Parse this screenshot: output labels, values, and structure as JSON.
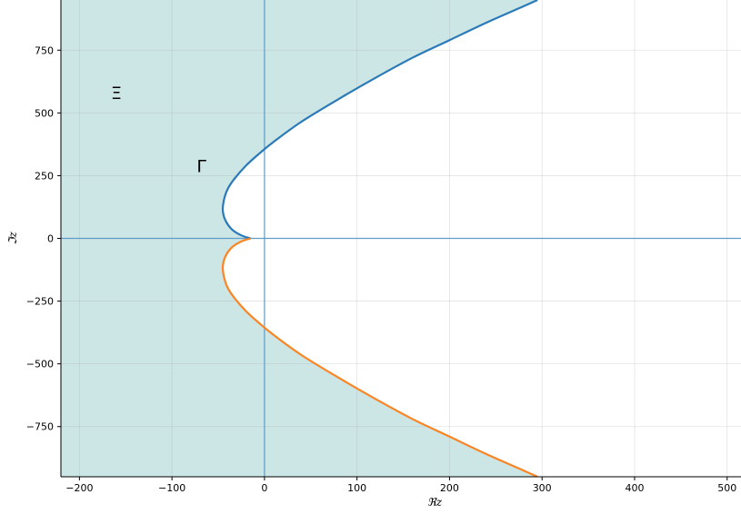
{
  "chart_data": {
    "type": "line",
    "title": "",
    "xlabel": "ℜz",
    "ylabel": "ℑz",
    "xlim": [
      -220,
      515
    ],
    "ylim": [
      -950,
      950
    ],
    "x_ticks": [
      -200,
      -100,
      0,
      100,
      200,
      300,
      400,
      500
    ],
    "y_ticks": [
      -750,
      -500,
      -250,
      0,
      250,
      500,
      750
    ],
    "x_tick_labels": [
      "−200",
      "−100",
      "0",
      "100",
      "200",
      "300",
      "400",
      "500"
    ],
    "y_tick_labels": [
      "−750",
      "−500",
      "−250",
      "0",
      "250",
      "500",
      "750"
    ],
    "grid": true,
    "legend": "none",
    "shaded_region": {
      "description_color": "#cce5e5",
      "side": "left-of-curve"
    },
    "reference_lines": [
      {
        "orientation": "vertical",
        "x": 0,
        "color": "#5f9dc6"
      },
      {
        "orientation": "horizontal",
        "y": 0,
        "color": "#5f9dc6"
      }
    ],
    "series": [
      {
        "color": "#2a7ab9",
        "x": [
          -15,
          -25,
          -35,
          -42,
          -45,
          -44,
          -40,
          -33,
          -20,
          -5,
          10,
          40,
          80,
          120,
          160,
          200,
          240,
          280,
          295
        ],
        "y": [
          0,
          12,
          35,
          70,
          110,
          150,
          195,
          235,
          290,
          340,
          385,
          465,
          555,
          640,
          720,
          790,
          860,
          925,
          950
        ]
      },
      {
        "color": "#fd8422",
        "x": [
          -15,
          -25,
          -35,
          -42,
          -45,
          -44,
          -40,
          -33,
          -20,
          -5,
          10,
          40,
          80,
          120,
          160,
          200,
          240,
          280,
          295
        ],
        "y": [
          0,
          -12,
          -35,
          -70,
          -110,
          -150,
          -195,
          -235,
          -290,
          -340,
          -385,
          -465,
          -555,
          -640,
          -720,
          -790,
          -860,
          -925,
          -950
        ]
      }
    ],
    "annotations": [
      {
        "text": "Ξ",
        "x": -160,
        "y": 555
      },
      {
        "text": "Γ",
        "x": -68,
        "y": 265
      }
    ]
  }
}
